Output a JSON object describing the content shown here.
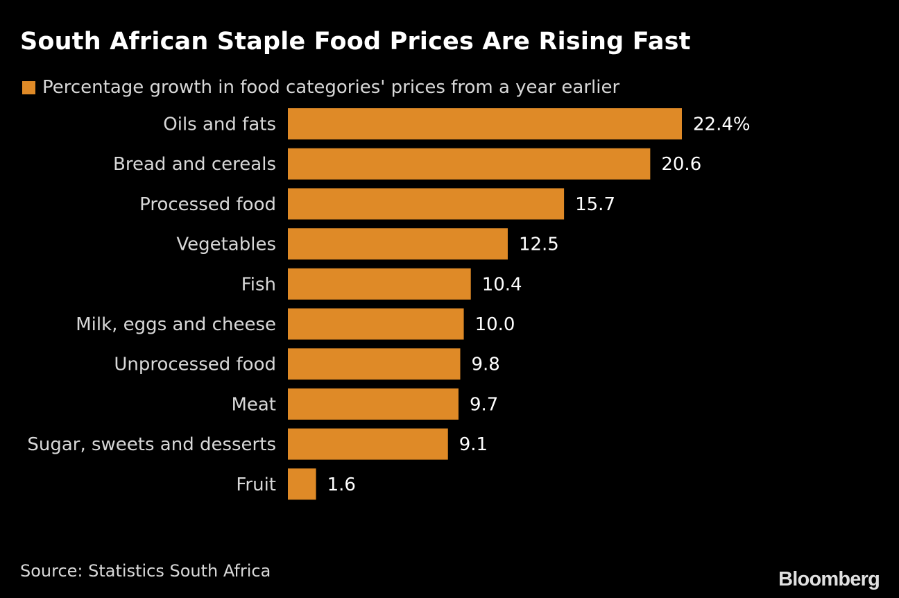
{
  "chart_data": {
    "type": "bar",
    "orientation": "horizontal",
    "title": "South African Staple Food Prices Are Rising Fast",
    "legend": "Percentage growth in food categories' prices from a year earlier",
    "categories": [
      "Oils and fats",
      "Bread and cereals",
      "Processed food",
      "Vegetables",
      "Fish",
      "Milk, eggs and cheese",
      "Unprocessed food",
      "Meat",
      "Sugar, sweets and desserts",
      "Fruit"
    ],
    "values": [
      22.4,
      20.6,
      15.7,
      12.5,
      10.4,
      10.0,
      9.8,
      9.7,
      9.1,
      1.6
    ],
    "data_labels": [
      "22.4%",
      "20.6",
      "15.7",
      "12.5",
      "10.4",
      "10.0",
      "9.8",
      "9.7",
      "9.1",
      "1.6"
    ],
    "xlim": [
      0,
      22.4
    ],
    "grid": false,
    "legend_placement": "top-left",
    "bar_color": "#DF8A27"
  },
  "source": "Source: Statistics South Africa",
  "logo": "Bloomberg"
}
